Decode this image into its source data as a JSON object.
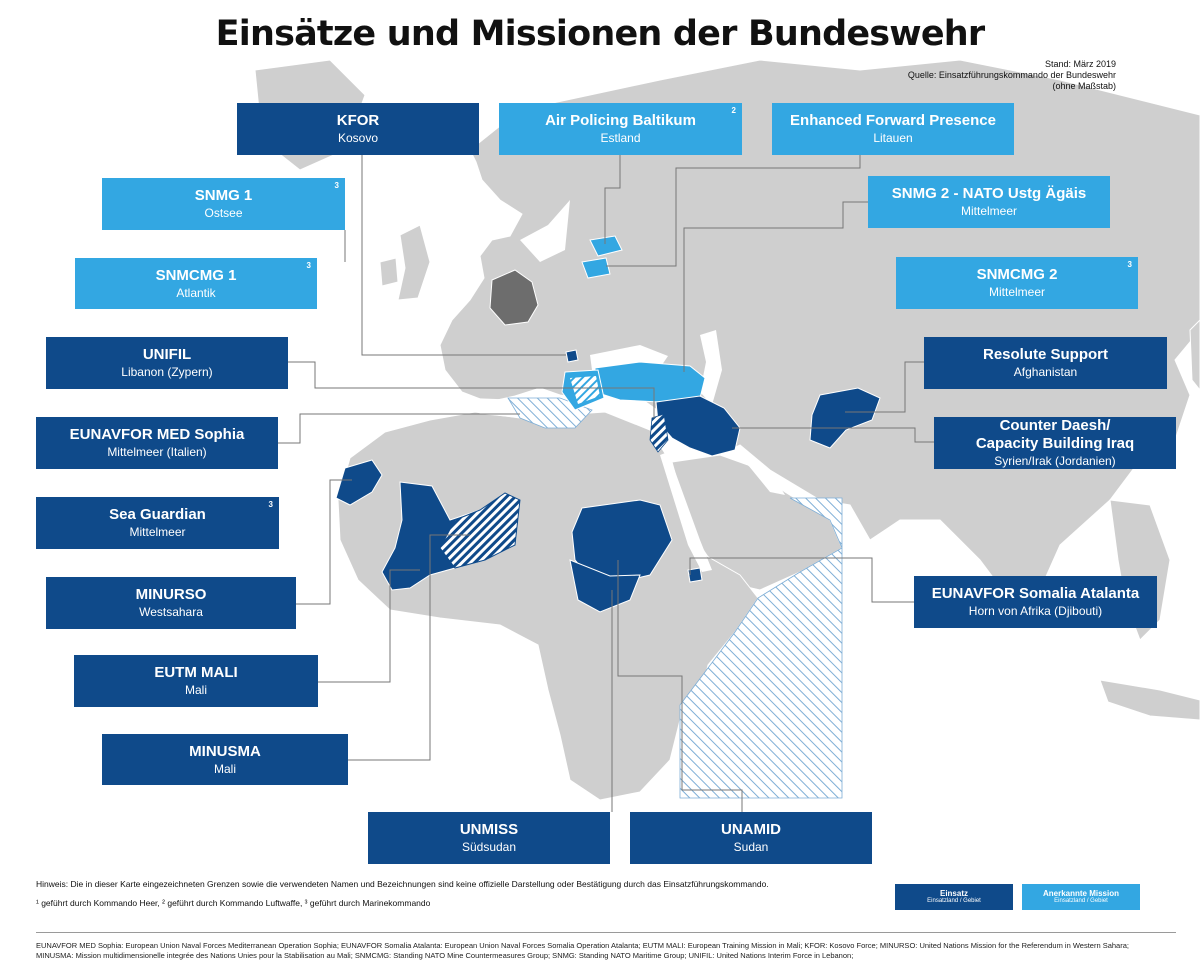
{
  "title": "Einsätze und Missionen der Bundeswehr",
  "meta": {
    "stand": "Stand: März 2019",
    "quelle": "Quelle: Einsatzführungskommando der Bundeswehr",
    "massstab": "(ohne Maßstab)"
  },
  "missions": {
    "kfor": {
      "name": "KFOR",
      "sub": "Kosovo",
      "type": "Einsatz"
    },
    "air_policing": {
      "name": "Air Policing Baltikum",
      "sub": "Estland",
      "sup": "2",
      "type": "Anerkannte Mission"
    },
    "efp": {
      "name": "Enhanced Forward Presence",
      "sub": "Litauen",
      "type": "Anerkannte Mission"
    },
    "snmg1": {
      "name": "SNMG 1",
      "sub": "Ostsee",
      "sup": "3",
      "type": "Anerkannte Mission"
    },
    "snmg2": {
      "name": "SNMG 2 - NATO Ustg Ägäis",
      "sub": "Mittelmeer",
      "type": "Anerkannte Mission"
    },
    "snmcmg1": {
      "name": "SNMCMG 1",
      "sub": "Atlantik",
      "sup": "3",
      "type": "Anerkannte Mission"
    },
    "snmcmg2": {
      "name": "SNMCMG 2",
      "sub": "Mittelmeer",
      "sup": "3",
      "type": "Anerkannte Mission"
    },
    "unifil": {
      "name": "UNIFIL",
      "sub": "Libanon (Zypern)",
      "type": "Einsatz"
    },
    "resolute": {
      "name": "Resolute Support",
      "sub": "Afghanistan",
      "type": "Einsatz"
    },
    "sophia": {
      "name": "EUNAVFOR MED Sophia",
      "sub": "Mittelmeer (Italien)",
      "type": "Einsatz"
    },
    "counter_daesh": {
      "name_line1": "Counter Daesh/",
      "name_line2": "Capacity Building Iraq",
      "sub": "Syrien/Irak (Jordanien)",
      "type": "Einsatz"
    },
    "sea_guardian": {
      "name": "Sea Guardian",
      "sub": "Mittelmeer",
      "sup": "3",
      "type": "Einsatz"
    },
    "minurso": {
      "name": "MINURSO",
      "sub": "Westsahara",
      "type": "Einsatz"
    },
    "atalanta": {
      "name": "EUNAVFOR Somalia Atalanta",
      "sub": "Horn von Afrika (Djibouti)",
      "type": "Einsatz"
    },
    "eutm": {
      "name": "EUTM MALI",
      "sub": "Mali",
      "type": "Einsatz"
    },
    "minusma": {
      "name": "MINUSMA",
      "sub": "Mali",
      "type": "Einsatz"
    },
    "unmiss": {
      "name": "UNMISS",
      "sub": "Südsudan",
      "type": "Einsatz"
    },
    "unamid": {
      "name": "UNAMID",
      "sub": "Sudan",
      "type": "Einsatz"
    }
  },
  "notes": {
    "hinweis": "Hinweis: Die in dieser Karte eingezeichneten Grenzen sowie die verwendeten Namen und Bezeichnungen sind keine offizielle Darstellung oder Bestätigung durch das Einsatzführungskommando.",
    "footnotes": "¹ geführt durch Kommando Heer, ² geführt durch Kommando Luftwaffe, ³ geführt durch Marinekommando"
  },
  "legend": {
    "einsatz_title": "Einsatz",
    "einsatz_sub": "Einsatzland / Gebiet",
    "anerkannt_title": "Anerkannte Mission",
    "anerkannt_sub": "Einsatzland / Gebiet"
  },
  "abbreviations": {
    "line1": "EUNAVFOR MED Sophia: European Union Naval Forces Mediterranean Operation Sophia; EUNAVFOR Somalia Atalanta: European Union Naval Forces Somalia Operation Atalanta; EUTM MALI: European Training Mission in Mali; KFOR: Kosovo Force; MINURSO: United Nations Mission for the Referendum in Western Sahara;",
    "line2": "MINUSMA: Mission multidimensionelle integrée des Nations Unies pour la Stabilisation au Mali; SNMCMG: Standing NATO Mine Countermeasures Group; SNMG: Standing NATO Maritime Group; UNIFIL: United Nations Interim Force in Lebanon;"
  },
  "colors": {
    "einsatz": "#0f4a8a",
    "anerkannte_mission": "#33a7e2",
    "land": "#cfcfcf",
    "germany": "#6d6d6d",
    "leader_line": "#777777"
  }
}
